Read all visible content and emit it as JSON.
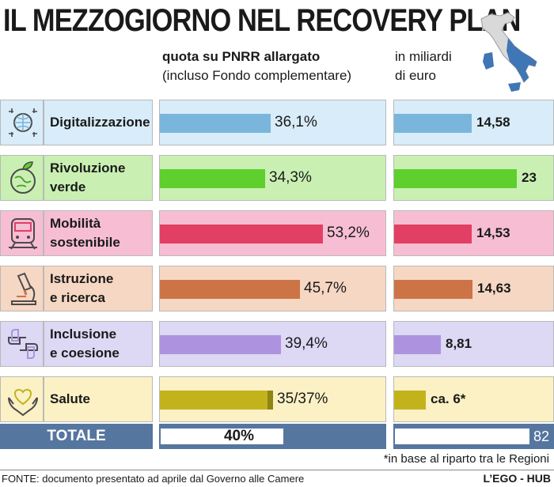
{
  "title": "IL MEZZOGIORNO NEL RECOVERY PLAN",
  "header": {
    "share_line1": "quota su PNRR allargato",
    "share_line2": "(incluso Fondo complementare)",
    "amount_line1": "in miliardi",
    "amount_line2": "di euro"
  },
  "chart_data": {
    "type": "bar",
    "title": "IL MEZZOGIORNO NEL RECOVERY PLAN",
    "categories": [
      "Digitalizzazione",
      "Rivoluzione verde",
      "Mobilità sostenibile",
      "Istruzione e ricerca",
      "Inclusione e coesione",
      "Salute"
    ],
    "series": [
      {
        "name": "quota su PNRR allargato (incluso Fondo complementare)",
        "unit": "%",
        "values": [
          36.1,
          34.3,
          53.2,
          45.7,
          39.4,
          35
        ],
        "labels": [
          "36,1%",
          "34,3%",
          "53,2%",
          "45,7%",
          "39,4%",
          "35/37%"
        ]
      },
      {
        "name": "in miliardi di euro",
        "unit": "miliardi di euro",
        "values": [
          14.58,
          23,
          14.53,
          14.63,
          8.81,
          6
        ],
        "labels": [
          "14,58",
          "23",
          "14,53",
          "14,63",
          "8,81",
          "ca. 6*"
        ]
      }
    ],
    "salute_pct_range": [
      35,
      37
    ],
    "total": {
      "label": "TOTALE",
      "pct": 40,
      "pct_label": "40%",
      "amount": 82,
      "amount_label": "82"
    }
  },
  "rows": [
    {
      "line1": "Digitalizzazione",
      "line2": "",
      "bg": "#d8ecf9",
      "bar": "#7ab6db"
    },
    {
      "line1": "Rivoluzione",
      "line2": "verde",
      "bg": "#c9f0b2",
      "bar": "#5ecf2c"
    },
    {
      "line1": "Mobilità",
      "line2": "sostenibile",
      "bg": "#f7bed3",
      "bar": "#e23f65"
    },
    {
      "line1": "Istruzione",
      "line2": "e ricerca",
      "bg": "#f6d7c3",
      "bar": "#cd7446"
    },
    {
      "line1": "Inclusione",
      "line2": "e coesione",
      "bg": "#ddd8f4",
      "bar": "#ad93df"
    },
    {
      "line1": "Salute",
      "line2": "",
      "bg": "#fbf1c4",
      "bar": "#c2b31c"
    }
  ],
  "icons": [
    "globe-circuit-icon",
    "earth-leaf-icon",
    "train-icon",
    "microscope-icon",
    "joined-hands-icon",
    "heart-hands-icon"
  ],
  "footnote": "*in base al riparto tra le Regioni",
  "source": "FONTE: documento presentato ad aprile dal Governo alle Camere",
  "credit": "L’EGO - HUB",
  "colors": {
    "total_bg": "#55769f",
    "icon_stroke": "#4a4a4a"
  }
}
